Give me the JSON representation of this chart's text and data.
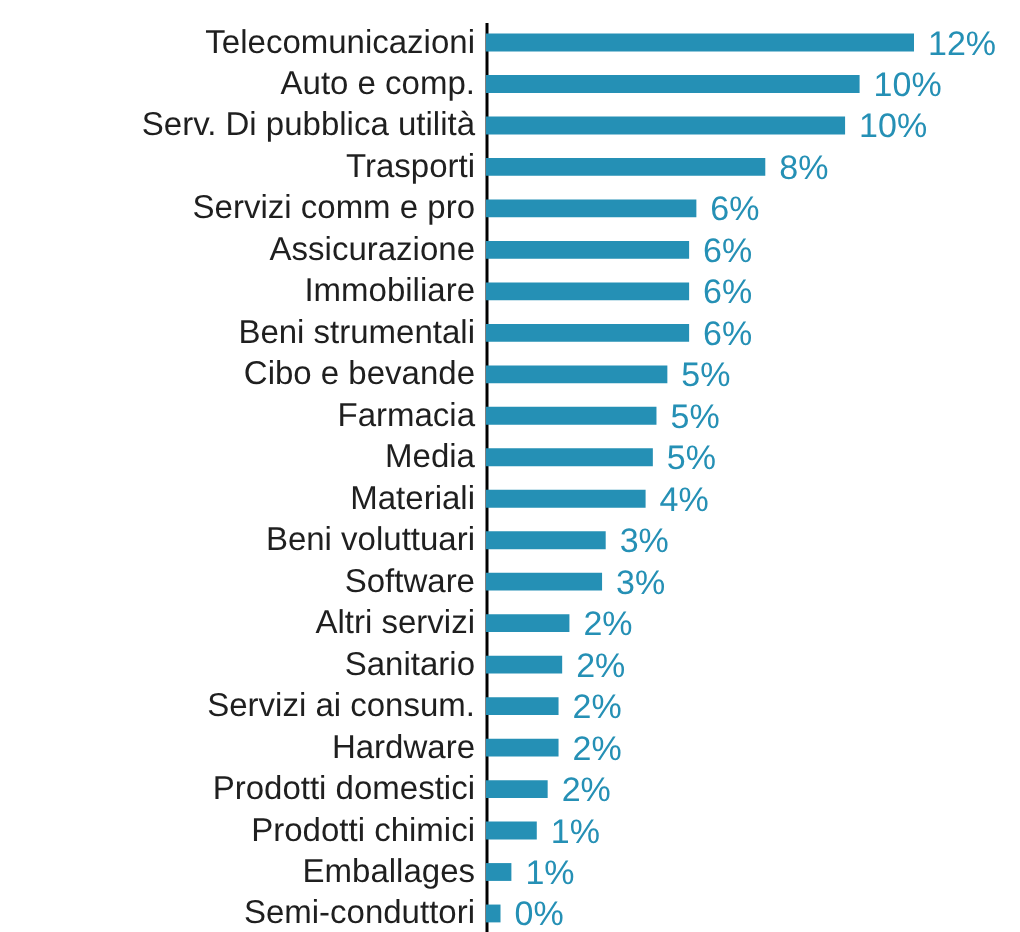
{
  "chart_data": {
    "type": "bar",
    "orientation": "horizontal",
    "color": "#2590b5",
    "categories": [
      "Telecomunicazioni",
      "Auto e comp.",
      "Serv. Di pubblica utilità",
      "Trasporti",
      "Servizi comm e pro",
      "Assicurazione",
      "Immobiliare",
      "Beni strumentali",
      "Cibo e bevande",
      "Farmacia",
      "Media",
      "Materiali",
      "Beni voluttuari",
      "Software",
      "Altri servizi",
      "Sanitario",
      "Servizi ai consum.",
      "Hardware",
      "Prodotti domestici",
      "Prodotti chimici",
      "Emballages",
      "Semi-conduttori"
    ],
    "values": [
      11.8,
      10.3,
      9.9,
      7.7,
      5.8,
      5.6,
      5.6,
      5.6,
      5.0,
      4.7,
      4.6,
      4.4,
      3.3,
      3.2,
      2.3,
      2.1,
      2.0,
      2.0,
      1.7,
      1.4,
      0.7,
      0.4
    ],
    "value_labels": [
      "12%",
      "10%",
      "10%",
      "8%",
      "6%",
      "6%",
      "6%",
      "6%",
      "5%",
      "5%",
      "5%",
      "4%",
      "3%",
      "3%",
      "2%",
      "2%",
      "2%",
      "2%",
      "2%",
      "1%",
      "1%",
      "0%"
    ]
  }
}
